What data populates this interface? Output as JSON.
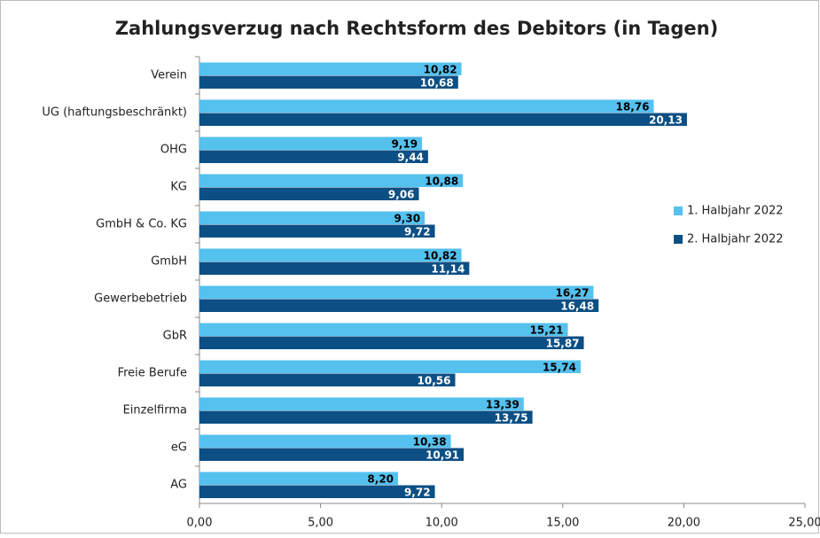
{
  "chart_data": {
    "type": "barh",
    "title": "Zahlungsverzug nach Rechtsform des Debitors (in Tagen)",
    "categories": [
      "Verein",
      "UG (haftungsbeschränkt)",
      "OHG",
      "KG",
      "GmbH & Co. KG",
      "GmbH",
      "Gewerbebetrieb",
      "GbR",
      "Freie Berufe",
      "Einzelfirma",
      "eG",
      "AG"
    ],
    "series": [
      {
        "name": "1. Halbjahr 2022",
        "color": "#55c1ef",
        "values": [
          10.82,
          18.76,
          9.19,
          10.88,
          9.3,
          10.82,
          16.27,
          15.21,
          15.74,
          13.39,
          10.38,
          8.2
        ],
        "value_labels": [
          "10,82",
          "18,76",
          "9,19",
          "10,88",
          "9,30",
          "10,82",
          "16,27",
          "15,21",
          "15,74",
          "13,39",
          "10,38",
          "8,20"
        ]
      },
      {
        "name": "2. Halbjahr 2022",
        "color": "#0c4f84",
        "values": [
          10.68,
          20.13,
          9.44,
          9.06,
          9.72,
          11.14,
          16.48,
          15.87,
          10.56,
          13.75,
          10.91,
          9.72
        ],
        "value_labels": [
          "10,68",
          "20,13",
          "9,44",
          "9,06",
          "9,72",
          "11,14",
          "16,48",
          "15,87",
          "10,56",
          "13,75",
          "10,91",
          "9,72"
        ]
      }
    ],
    "xlim": [
      0,
      25
    ],
    "xticks": [
      {
        "value": 0,
        "label": "0,00"
      },
      {
        "value": 5,
        "label": "5,00"
      },
      {
        "value": 10,
        "label": "10,00"
      },
      {
        "value": 15,
        "label": "15,00"
      },
      {
        "value": 20,
        "label": "20,00"
      },
      {
        "value": 25,
        "label": "25,00"
      }
    ],
    "legend": "right"
  }
}
